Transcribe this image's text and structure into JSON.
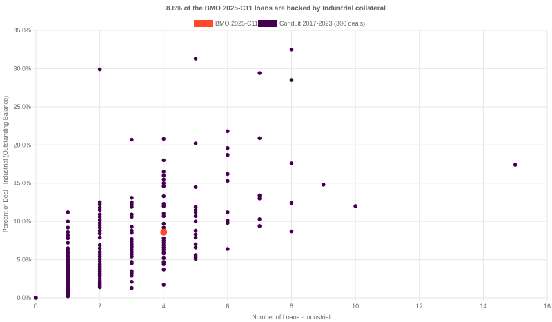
{
  "chart_data": {
    "type": "scatter",
    "title": "8.6% of the BMO 2025-C11 loans are backed by Industrial collateral",
    "xlabel": "Number of Loans - Industrial",
    "ylabel": "Percent of Deal - Industrial (Outstanding Balance)",
    "xlim": [
      0,
      16
    ],
    "ylim": [
      0,
      35
    ],
    "x_ticks": [
      "0",
      "2",
      "4",
      "6",
      "8",
      "10",
      "12",
      "14",
      "16"
    ],
    "y_ticks": [
      "0.0%",
      "5.0%",
      "10.0%",
      "15.0%",
      "20.0%",
      "25.0%",
      "30.0%",
      "35.0%"
    ],
    "grid": true,
    "legend_position": "top-center",
    "series": [
      {
        "name": "BMO 2025-C11",
        "color": "#ff4a2a",
        "points": [
          [
            4,
            8.6
          ]
        ]
      },
      {
        "name": "Conduit 2017-2023 (306 deals)",
        "color": "#44004f",
        "points": [
          [
            0,
            0
          ],
          [
            1,
            11.2
          ],
          [
            1,
            10.0
          ],
          [
            1,
            9.2
          ],
          [
            1,
            8.6
          ],
          [
            1,
            8.2
          ],
          [
            1,
            7.8
          ],
          [
            1,
            7.2
          ],
          [
            1,
            6.5
          ],
          [
            1,
            6.3
          ],
          [
            1,
            6.0
          ],
          [
            1,
            5.8
          ],
          [
            1,
            5.5
          ],
          [
            1,
            5.3
          ],
          [
            1,
            5.0
          ],
          [
            1,
            4.8
          ],
          [
            1,
            4.6
          ],
          [
            1,
            4.4
          ],
          [
            1,
            4.2
          ],
          [
            1,
            4.0
          ],
          [
            1,
            3.8
          ],
          [
            1,
            3.6
          ],
          [
            1,
            3.4
          ],
          [
            1,
            3.2
          ],
          [
            1,
            3.0
          ],
          [
            1,
            2.8
          ],
          [
            1,
            2.6
          ],
          [
            1,
            2.4
          ],
          [
            1,
            2.2
          ],
          [
            1,
            2.0
          ],
          [
            1,
            1.8
          ],
          [
            1,
            1.6
          ],
          [
            1,
            1.4
          ],
          [
            1,
            1.2
          ],
          [
            1,
            1.0
          ],
          [
            1,
            0.8
          ],
          [
            1,
            0.6
          ],
          [
            1,
            0.4
          ],
          [
            1,
            0.2
          ],
          [
            2,
            29.9
          ],
          [
            2,
            12.5
          ],
          [
            2,
            12.2
          ],
          [
            2,
            11.8
          ],
          [
            2,
            11.5
          ],
          [
            2,
            10.9
          ],
          [
            2,
            10.6
          ],
          [
            2,
            10.2
          ],
          [
            2,
            9.8
          ],
          [
            2,
            9.5
          ],
          [
            2,
            9.2
          ],
          [
            2,
            8.8
          ],
          [
            2,
            8.4
          ],
          [
            2,
            7.9
          ],
          [
            2,
            6.9
          ],
          [
            2,
            6.5
          ],
          [
            2,
            6.0
          ],
          [
            2,
            5.7
          ],
          [
            2,
            5.4
          ],
          [
            2,
            5.1
          ],
          [
            2,
            4.8
          ],
          [
            2,
            4.4
          ],
          [
            2,
            4.1
          ],
          [
            2,
            3.8
          ],
          [
            2,
            3.5
          ],
          [
            2,
            3.2
          ],
          [
            2,
            3.0
          ],
          [
            2,
            2.8
          ],
          [
            2,
            2.5
          ],
          [
            2,
            2.2
          ],
          [
            2,
            2.0
          ],
          [
            2,
            1.8
          ],
          [
            2,
            1.6
          ],
          [
            2,
            1.4
          ],
          [
            3,
            20.7
          ],
          [
            3,
            13.1
          ],
          [
            3,
            12.5
          ],
          [
            3,
            12.2
          ],
          [
            3,
            11.9
          ],
          [
            3,
            10.9
          ],
          [
            3,
            10.6
          ],
          [
            3,
            9.3
          ],
          [
            3,
            8.8
          ],
          [
            3,
            8.5
          ],
          [
            3,
            7.7
          ],
          [
            3,
            7.4
          ],
          [
            3,
            7.0
          ],
          [
            3,
            6.7
          ],
          [
            3,
            6.3
          ],
          [
            3,
            6.0
          ],
          [
            3,
            5.7
          ],
          [
            3,
            5.4
          ],
          [
            3,
            4.7
          ],
          [
            3,
            4.5
          ],
          [
            3,
            3.5
          ],
          [
            3,
            3.2
          ],
          [
            3,
            2.9
          ],
          [
            3,
            2.1
          ],
          [
            3,
            1.3
          ],
          [
            4,
            20.8
          ],
          [
            4,
            18.0
          ],
          [
            4,
            16.5
          ],
          [
            4,
            16.0
          ],
          [
            4,
            15.5
          ],
          [
            4,
            15.0
          ],
          [
            4,
            14.6
          ],
          [
            4,
            13.3
          ],
          [
            4,
            12.3
          ],
          [
            4,
            12.0
          ],
          [
            4,
            11.0
          ],
          [
            4,
            10.7
          ],
          [
            4,
            9.7
          ],
          [
            4,
            9.2
          ],
          [
            4,
            8.9
          ],
          [
            4,
            7.8
          ],
          [
            4,
            7.5
          ],
          [
            4,
            7.2
          ],
          [
            4,
            6.9
          ],
          [
            4,
            6.6
          ],
          [
            4,
            6.3
          ],
          [
            4,
            6.0
          ],
          [
            4,
            5.8
          ],
          [
            4,
            5.2
          ],
          [
            4,
            4.7
          ],
          [
            4,
            4.4
          ],
          [
            4,
            3.7
          ],
          [
            4,
            1.7
          ],
          [
            5,
            31.3
          ],
          [
            5,
            20.2
          ],
          [
            5,
            14.5
          ],
          [
            5,
            11.9
          ],
          [
            5,
            11.5
          ],
          [
            5,
            11.2
          ],
          [
            5,
            10.7
          ],
          [
            5,
            10.0
          ],
          [
            5,
            8.8
          ],
          [
            5,
            8.3
          ],
          [
            5,
            7.9
          ],
          [
            5,
            7.0
          ],
          [
            5,
            6.6
          ],
          [
            5,
            5.6
          ],
          [
            5,
            5.3
          ],
          [
            5,
            5.1
          ],
          [
            6,
            21.8
          ],
          [
            6,
            19.6
          ],
          [
            6,
            18.7
          ],
          [
            6,
            16.2
          ],
          [
            6,
            15.3
          ],
          [
            6,
            11.2
          ],
          [
            6,
            10.1
          ],
          [
            6,
            9.8
          ],
          [
            6,
            6.4
          ],
          [
            7,
            29.4
          ],
          [
            7,
            20.9
          ],
          [
            7,
            13.4
          ],
          [
            7,
            13.0
          ],
          [
            7,
            10.3
          ],
          [
            7,
            9.4
          ],
          [
            8,
            32.5
          ],
          [
            8,
            28.5
          ],
          [
            8,
            17.6
          ],
          [
            8,
            12.4
          ],
          [
            8,
            8.7
          ],
          [
            9,
            14.8
          ],
          [
            10,
            12.0
          ],
          [
            15,
            17.4
          ]
        ]
      }
    ]
  }
}
